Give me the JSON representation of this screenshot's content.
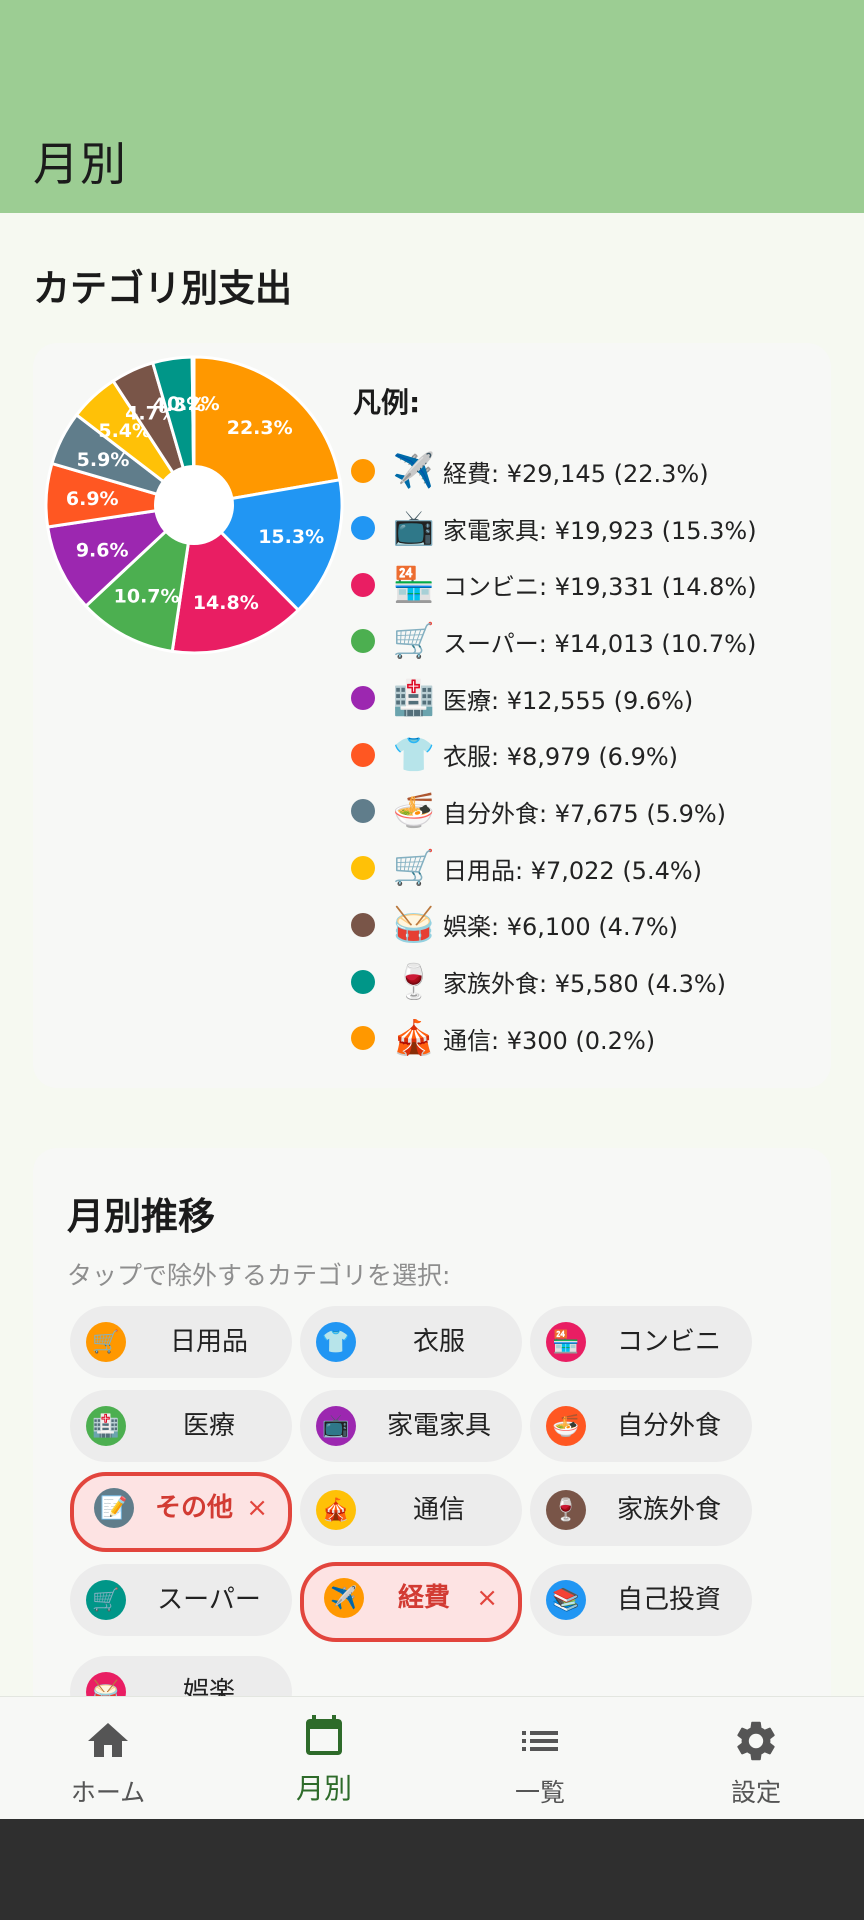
{
  "appbar": {
    "title": "月別"
  },
  "category_section": {
    "title": "カテゴリ別支出"
  },
  "chart_data": {
    "type": "pie",
    "title": "",
    "legend_title": "凡例:",
    "slices": [
      {
        "name": "経費",
        "emoji": "✈️",
        "amount": "¥29,145",
        "value": 22.3,
        "label": "22.3%",
        "color": "#ff9800"
      },
      {
        "name": "家電家具",
        "emoji": "📺",
        "amount": "¥19,923",
        "value": 15.3,
        "label": "15.3%",
        "color": "#2196f3"
      },
      {
        "name": "コンビニ",
        "emoji": "🏪",
        "amount": "¥19,331",
        "value": 14.8,
        "label": "14.8%",
        "color": "#e91e63"
      },
      {
        "name": "スーパー",
        "emoji": "🛒",
        "amount": "¥14,013",
        "value": 10.7,
        "label": "10.7%",
        "color": "#4caf50"
      },
      {
        "name": "医療",
        "emoji": "🏥",
        "amount": "¥12,555",
        "value": 9.6,
        "label": "9.6%",
        "color": "#9c27b0"
      },
      {
        "name": "衣服",
        "emoji": "👕",
        "amount": "¥8,979",
        "value": 6.9,
        "label": "6.9%",
        "color": "#ff5722"
      },
      {
        "name": "自分外食",
        "emoji": "🍜",
        "amount": "¥7,675",
        "value": 5.9,
        "label": "5.9%",
        "color": "#607d8b"
      },
      {
        "name": "日用品",
        "emoji": "🛒",
        "amount": "¥7,022",
        "value": 5.4,
        "label": "5.4%",
        "color": "#ffc107"
      },
      {
        "name": "娯楽",
        "emoji": "🥁",
        "amount": "¥6,100",
        "value": 4.7,
        "label": "4.7%",
        "color": "#795548"
      },
      {
        "name": "家族外食",
        "emoji": "🍷",
        "amount": "¥5,580",
        "value": 4.3,
        "label": "4.3%",
        "color": "#009688"
      },
      {
        "name": "通信",
        "emoji": "🎪",
        "amount": "¥300",
        "value": 0.2,
        "label": "0.2%",
        "color": "#ff9800"
      }
    ],
    "legend": [
      "経費: ¥29,145 (22.3%)",
      "家電家具: ¥19,923 (15.3%)",
      "コンビニ: ¥19,331 (14.8%)",
      "スーパー: ¥14,013 (10.7%)",
      "医療: ¥12,555 (9.6%)",
      "衣服: ¥8,979 (6.9%)",
      "自分外食: ¥7,675 (5.9%)",
      "日用品: ¥7,022 (5.4%)",
      "娯楽: ¥6,100 (4.7%)",
      "家族外食: ¥5,580 (4.3%)",
      "通信: ¥300 (0.2%)"
    ]
  },
  "trend_section": {
    "title": "月別推移",
    "hint": "タップで除外するカテゴリを選択:",
    "chips": [
      {
        "label": "日用品",
        "emoji": "🛒",
        "color": "#ff9800",
        "selected": false
      },
      {
        "label": "衣服",
        "emoji": "👕",
        "color": "#2196f3",
        "selected": false
      },
      {
        "label": "コンビニ",
        "emoji": "🏪",
        "color": "#e91e63",
        "selected": false
      },
      {
        "label": "医療",
        "emoji": "🏥",
        "color": "#4caf50",
        "selected": false
      },
      {
        "label": "家電家具",
        "emoji": "📺",
        "color": "#9c27b0",
        "selected": false
      },
      {
        "label": "自分外食",
        "emoji": "🍜",
        "color": "#ff5722",
        "selected": false
      },
      {
        "label": "その他",
        "emoji": "📝",
        "color": "#607d8b",
        "selected": true
      },
      {
        "label": "通信",
        "emoji": "🎪",
        "color": "#ffc107",
        "selected": false
      },
      {
        "label": "家族外食",
        "emoji": "🍷",
        "color": "#795548",
        "selected": false
      },
      {
        "label": "スーパー",
        "emoji": "🛒",
        "color": "#009688",
        "selected": false
      },
      {
        "label": "経費",
        "emoji": "✈️",
        "color": "#ff9800",
        "selected": true
      },
      {
        "label": "自己投資",
        "emoji": "📚",
        "color": "#2196f3",
        "selected": false
      },
      {
        "label": "娯楽",
        "emoji": "🥁",
        "color": "#e91e63",
        "selected": false
      }
    ],
    "remove_mark": "×"
  },
  "bottom_nav": {
    "items": [
      {
        "label": "ホーム",
        "icon": "home-icon"
      },
      {
        "label": "月別",
        "icon": "calendar-icon"
      },
      {
        "label": "一覧",
        "icon": "list-icon"
      },
      {
        "label": "設定",
        "icon": "gear-icon"
      }
    ],
    "active_color": "#2e6b2a"
  }
}
